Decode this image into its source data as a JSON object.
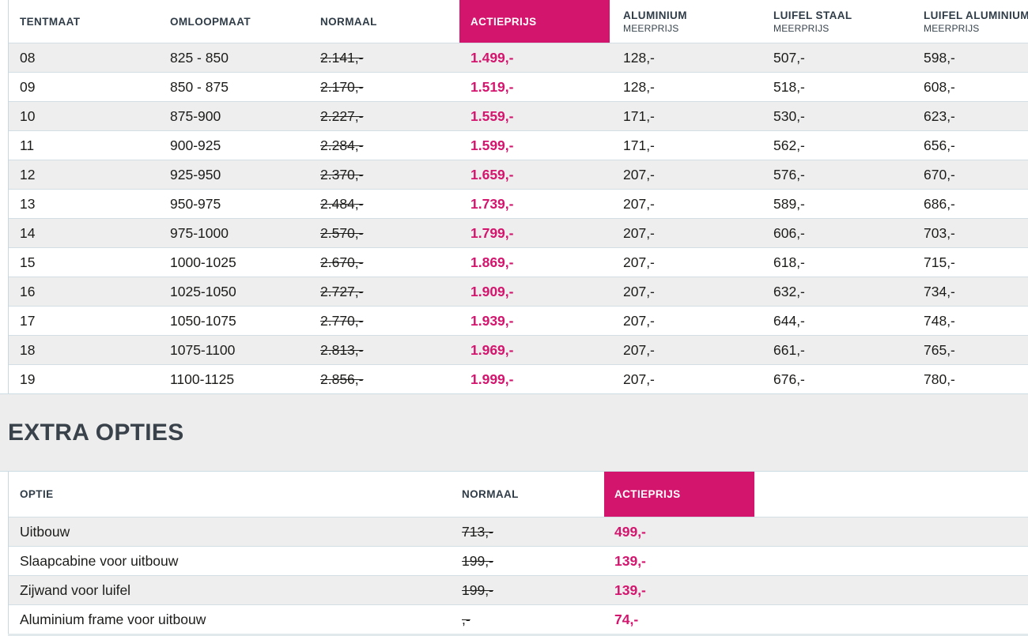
{
  "theme": {
    "accent_pink": "#d4156e",
    "header_text": "#2f3c47",
    "body_text": "#1c1c1a",
    "row_stripe": "#eeeeee",
    "band_background": "#ededed",
    "separator_line": "#d2dee4"
  },
  "main_table": {
    "columns": [
      {
        "label": "TENTMAAT",
        "sub": ""
      },
      {
        "label": "OMLOOPMAAT",
        "sub": ""
      },
      {
        "label": "NORMAAL",
        "sub": ""
      },
      {
        "label": "ACTIEPRIJS",
        "sub": ""
      },
      {
        "label": "ALUMINIUM",
        "sub": "MEERPRIJS"
      },
      {
        "label": "LUIFEL STAAL",
        "sub": "MEERPRIJS"
      },
      {
        "label": "LUIFEL ALUMINIUM",
        "sub": "MEERPRIJS"
      }
    ],
    "rows": [
      [
        "08",
        "825 - 850",
        "2.141,-",
        "1.499,-",
        "128,-",
        "507,-",
        "598,-"
      ],
      [
        "09",
        "850 - 875",
        "2.170,-",
        "1.519,-",
        "128,-",
        "518,-",
        "608,-"
      ],
      [
        "10",
        "875-900",
        "2.227,-",
        "1.559,-",
        "171,-",
        "530,-",
        "623,-"
      ],
      [
        "11",
        "900-925",
        "2.284,-",
        "1.599,-",
        "171,-",
        "562,-",
        "656,-"
      ],
      [
        "12",
        "925-950",
        "2.370,-",
        "1.659,-",
        "207,-",
        "576,-",
        "670,-"
      ],
      [
        "13",
        "950-975",
        "2.484,-",
        "1.739,-",
        "207,-",
        "589,-",
        "686,-"
      ],
      [
        "14",
        "975-1000",
        "2.570,-",
        "1.799,-",
        "207,-",
        "606,-",
        "703,-"
      ],
      [
        "15",
        "1000-1025",
        "2.670,-",
        "1.869,-",
        "207,-",
        "618,-",
        "715,-"
      ],
      [
        "16",
        "1025-1050",
        "2.727,-",
        "1.909,-",
        "207,-",
        "632,-",
        "734,-"
      ],
      [
        "17",
        "1050-1075",
        "2.770,-",
        "1.939,-",
        "207,-",
        "644,-",
        "748,-"
      ],
      [
        "18",
        "1075-1100",
        "2.813,-",
        "1.969,-",
        "207,-",
        "661,-",
        "765,-"
      ],
      [
        "19",
        "1100-1125",
        "2.856,-",
        "1.999,-",
        "207,-",
        "676,-",
        "780,-"
      ]
    ]
  },
  "section_heading": "EXTRA OPTIES",
  "options_table": {
    "columns": [
      {
        "label": "OPTIE"
      },
      {
        "label": "NORMAAL"
      },
      {
        "label": "ACTIEPRIJS"
      }
    ],
    "rows": [
      [
        "Uitbouw",
        "713,-",
        "499,-"
      ],
      [
        "Slaapcabine voor uitbouw",
        "199,-",
        "139,-"
      ],
      [
        "Zijwand voor luifel",
        "199,-",
        "139,-"
      ],
      [
        "Aluminium frame voor uitbouw",
        ",-",
        "74,-"
      ]
    ]
  }
}
